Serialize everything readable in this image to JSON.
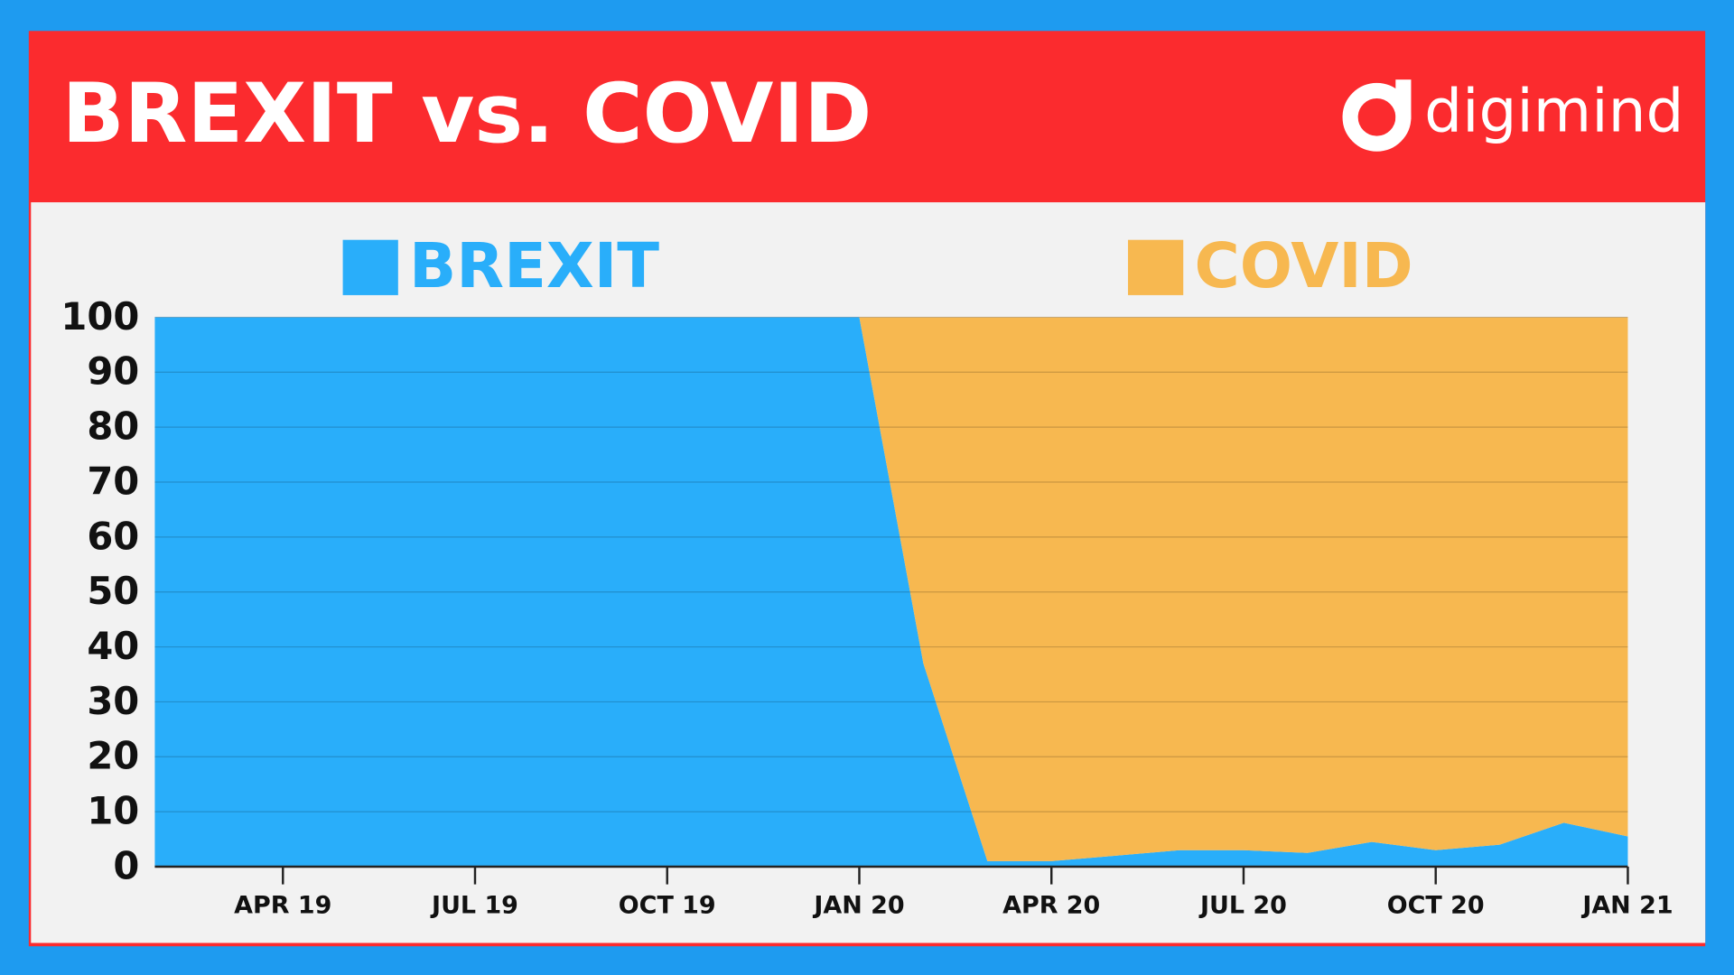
{
  "chart_data": {
    "type": "stacked-area",
    "title": "BREXIT vs. COVID",
    "brand": "digimind",
    "categories": [
      null,
      null,
      "APR 19",
      null,
      null,
      "JUL 19",
      null,
      null,
      "OCT 19",
      null,
      null,
      "JAN 20",
      null,
      null,
      "APR 20",
      null,
      null,
      "JUL 20",
      null,
      null,
      "OCT 20",
      null,
      null,
      "JAN 21"
    ],
    "series": [
      {
        "name": "BREXIT",
        "color": "#29aefa",
        "values": [
          100,
          100,
          100,
          100,
          100,
          100,
          100,
          100,
          100,
          100,
          100,
          100,
          37,
          1,
          1,
          2,
          3,
          3,
          2.5,
          4.5,
          3,
          4,
          8,
          5.5
        ]
      },
      {
        "name": "COVID",
        "color": "#f7b850",
        "values": [
          0,
          0,
          0,
          0,
          0,
          0,
          0,
          0,
          0,
          0,
          0,
          0,
          63,
          99,
          99,
          98,
          97,
          97,
          97.5,
          95.5,
          97,
          96,
          92,
          94.5
        ]
      }
    ],
    "ylim": [
      0,
      100
    ],
    "yticks": [
      0,
      10,
      20,
      30,
      40,
      50,
      60,
      70,
      80,
      90,
      100
    ],
    "grid": true
  }
}
